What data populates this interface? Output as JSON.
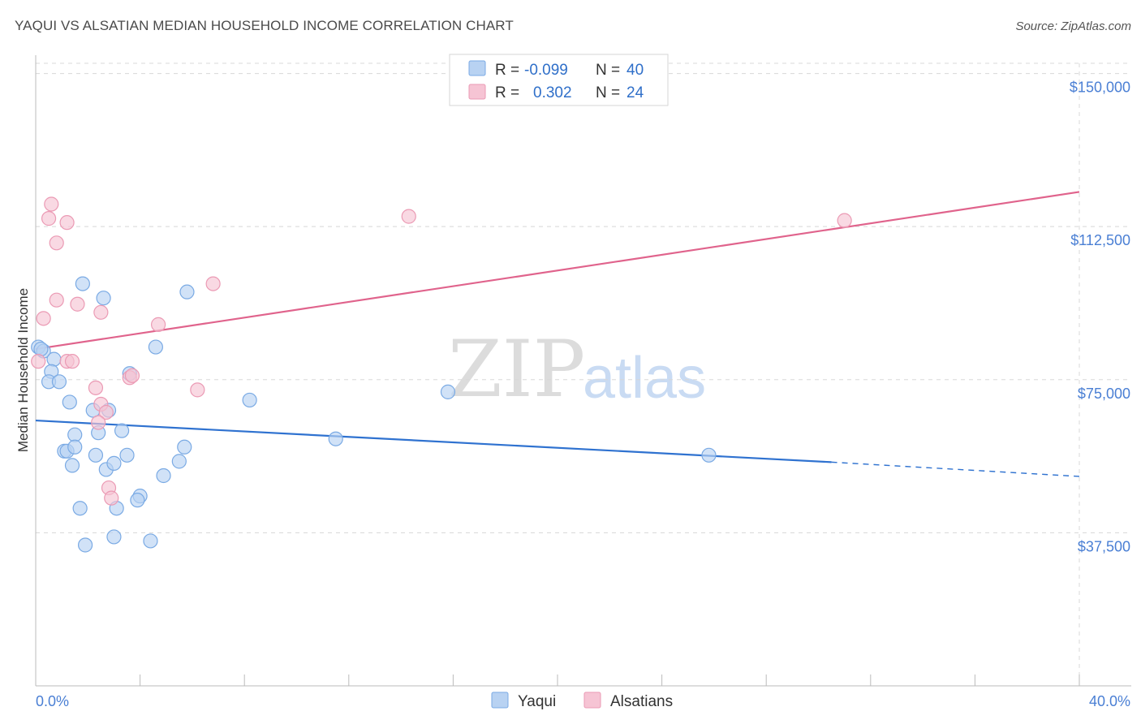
{
  "title": "YAQUI VS ALSATIAN MEDIAN HOUSEHOLD INCOME CORRELATION CHART",
  "source": "Source: ZipAtlas.com",
  "watermark": {
    "zip": "ZIP",
    "atlas": "atlas"
  },
  "legend": {
    "series": [
      {
        "r_label": "R =",
        "r_value": "-0.099",
        "n_label": "N =",
        "n_value": "40"
      },
      {
        "r_label": "R =",
        "r_value": "0.302",
        "n_label": "N =",
        "n_value": "24"
      }
    ]
  },
  "bottom_legend": [
    "Yaqui",
    "Alsatians"
  ],
  "colors": {
    "yaqui_fill": "#b8d2f2",
    "yaqui_stroke": "#7aaae4",
    "yaqui_line": "#2f72d0",
    "alsatian_fill": "#f6c4d4",
    "alsatian_stroke": "#eb9ab4",
    "alsatian_line": "#e0638c",
    "grid": "#d8d8d8",
    "tick_text": "#4a7fd4"
  },
  "chart_data": {
    "type": "scatter",
    "title": "YAQUI VS ALSATIAN MEDIAN HOUSEHOLD INCOME CORRELATION CHART",
    "xlabel": "",
    "ylabel": "Median Household Income",
    "xlim": [
      0,
      40
    ],
    "ylim": [
      0,
      152500
    ],
    "x_tick_labels": [
      "0.0%",
      "40.0%"
    ],
    "y_ticks": [
      {
        "value": 37500,
        "label": "$37,500"
      },
      {
        "value": 75000,
        "label": "$75,000"
      },
      {
        "value": 112500,
        "label": "$112,500"
      },
      {
        "value": 150000,
        "label": "$150,000"
      }
    ],
    "series": [
      {
        "name": "Yaqui",
        "points": [
          [
            0.1,
            83000
          ],
          [
            0.3,
            82000
          ],
          [
            0.7,
            80000
          ],
          [
            0.6,
            77000
          ],
          [
            0.5,
            74500
          ],
          [
            0.9,
            74500
          ],
          [
            1.3,
            69500
          ],
          [
            1.8,
            98500
          ],
          [
            2.6,
            95000
          ],
          [
            1.5,
            61500
          ],
          [
            2.2,
            67500
          ],
          [
            2.8,
            67500
          ],
          [
            1.1,
            57500
          ],
          [
            1.2,
            57500
          ],
          [
            1.5,
            58500
          ],
          [
            1.4,
            54000
          ],
          [
            2.3,
            56500
          ],
          [
            2.7,
            53000
          ],
          [
            3.0,
            54500
          ],
          [
            3.3,
            62500
          ],
          [
            3.5,
            56500
          ],
          [
            3.6,
            76500
          ],
          [
            4.6,
            83000
          ],
          [
            5.8,
            96500
          ],
          [
            5.7,
            58500
          ],
          [
            5.5,
            55000
          ],
          [
            4.9,
            51500
          ],
          [
            4.0,
            46500
          ],
          [
            3.9,
            45500
          ],
          [
            3.1,
            43500
          ],
          [
            1.7,
            43500
          ],
          [
            3.0,
            36500
          ],
          [
            4.4,
            35500
          ],
          [
            1.9,
            34500
          ],
          [
            8.2,
            70000
          ],
          [
            11.5,
            60500
          ],
          [
            15.8,
            72000
          ],
          [
            25.8,
            56500
          ],
          [
            0.2,
            82500
          ],
          [
            2.4,
            62000
          ]
        ],
        "trend": {
          "x0": 0,
          "y0": 65000,
          "x1": 30.5,
          "y1": 54800,
          "dash_x1": 40,
          "dash_y1": 51300
        }
      },
      {
        "name": "Alsatians",
        "points": [
          [
            0.1,
            79500
          ],
          [
            0.3,
            90000
          ],
          [
            0.5,
            114500
          ],
          [
            0.6,
            118000
          ],
          [
            0.8,
            108500
          ],
          [
            0.8,
            94500
          ],
          [
            1.2,
            79500
          ],
          [
            1.4,
            79500
          ],
          [
            1.2,
            113500
          ],
          [
            1.6,
            93500
          ],
          [
            2.5,
            91500
          ],
          [
            2.3,
            73000
          ],
          [
            2.5,
            69000
          ],
          [
            2.7,
            67000
          ],
          [
            2.4,
            64500
          ],
          [
            2.8,
            48500
          ],
          [
            2.9,
            46000
          ],
          [
            3.6,
            75500
          ],
          [
            3.7,
            76000
          ],
          [
            4.7,
            88500
          ],
          [
            6.2,
            72500
          ],
          [
            6.8,
            98500
          ],
          [
            14.3,
            115000
          ],
          [
            31.0,
            114000
          ]
        ],
        "trend": {
          "x0": 0,
          "y0": 82500,
          "x1": 40,
          "y1": 121000
        }
      }
    ]
  }
}
